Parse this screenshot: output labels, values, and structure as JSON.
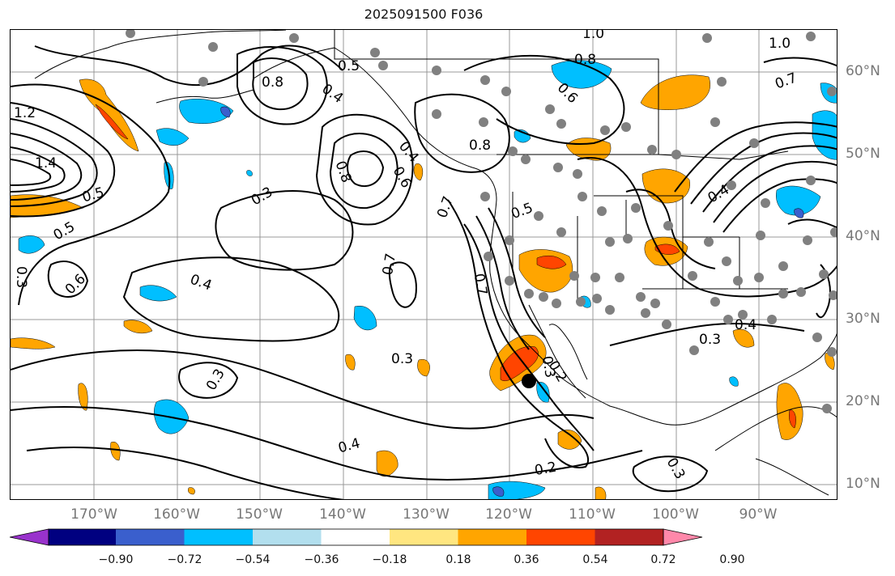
{
  "title": "2025091500 F036",
  "longitude_labels": [
    "170°W",
    "160°W",
    "150°W",
    "140°W",
    "130°W",
    "120°W",
    "110°W",
    "100°W",
    "90°W"
  ],
  "latitude_labels": [
    "60°N",
    "50°N",
    "40°N",
    "30°N",
    "20°N",
    "10°N"
  ],
  "colorbar": {
    "tick_labels": [
      "−0.90",
      "−0.72",
      "−0.54",
      "−0.36",
      "−0.18",
      "0.18",
      "0.36",
      "0.54",
      "0.72",
      "0.90"
    ],
    "colors": [
      "#9932cc",
      "#000080",
      "#3a5fcd",
      "#00bfff",
      "#b2dfee",
      "#ffffff",
      "#ffe680",
      "#ffa500",
      "#ff4500",
      "#b22222",
      "#ff88aa"
    ]
  },
  "contour_labels": [
    "1.0",
    "0.8",
    "0.6",
    "0.5",
    "0.4",
    "0.3",
    "0.2",
    "1.4",
    "1.2",
    "0.7",
    "0.5",
    "0.3",
    "0.4",
    "0.6",
    "0.8",
    "0.7",
    "0.3",
    "0.4",
    "0.3",
    "0.2",
    "0.3",
    "0.4",
    "1.0",
    "0.8",
    "0.6",
    "0.8",
    "0.5",
    "0.4",
    "0.7",
    "0.3",
    "0.7",
    "0.3",
    "0.4",
    "0.5"
  ],
  "colors": {
    "contour": "#000000",
    "grid": "#999999",
    "coast": "#000000",
    "station": "#808080",
    "storm_center": "#000000"
  },
  "legend_icon": "colorbar-triangle-ends"
}
